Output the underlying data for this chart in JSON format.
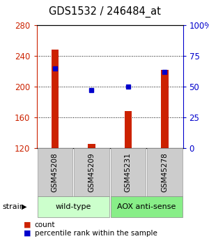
{
  "title": "GDS1532 / 246484_at",
  "samples": [
    "GSM45208",
    "GSM45209",
    "GSM45231",
    "GSM45278"
  ],
  "counts": [
    248,
    126,
    168,
    222
  ],
  "percentiles": [
    65,
    47,
    50,
    62
  ],
  "ylim_left": [
    120,
    280
  ],
  "ylim_right": [
    0,
    100
  ],
  "yticks_left": [
    120,
    160,
    200,
    240,
    280
  ],
  "yticks_right": [
    0,
    25,
    50,
    75,
    100
  ],
  "yticklabels_right": [
    "0",
    "25",
    "50",
    "75",
    "100%"
  ],
  "bar_color": "#cc2200",
  "dot_color": "#0000cc",
  "strain_groups": [
    {
      "label": "wild-type",
      "samples": [
        0,
        1
      ],
      "color": "#ccffcc"
    },
    {
      "label": "AOX anti-sense",
      "samples": [
        2,
        3
      ],
      "color": "#88ee88"
    }
  ],
  "strain_label": "strain",
  "legend_count_label": "count",
  "legend_pct_label": "percentile rank within the sample",
  "box_color": "#cccccc",
  "left_tick_color": "#cc2200",
  "right_tick_color": "#0000cc",
  "title_fontsize": 10.5,
  "tick_fontsize": 8.5,
  "label_fontsize": 7.5,
  "legend_fontsize": 7.5,
  "strain_fontsize": 8
}
